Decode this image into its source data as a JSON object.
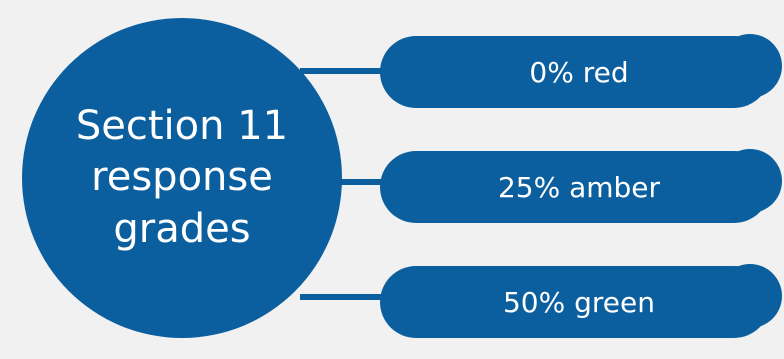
{
  "diagram": {
    "hub": {
      "line_1": "Section 11",
      "line_2": "response",
      "line_3": "grades"
    },
    "grades": [
      {
        "label": "0% red"
      },
      {
        "label": "25% amber"
      },
      {
        "label": "50% green"
      }
    ]
  },
  "colors": {
    "background": "#f1f1f1",
    "shape_fill": "#0b5f9f",
    "text": "#ffffff"
  }
}
